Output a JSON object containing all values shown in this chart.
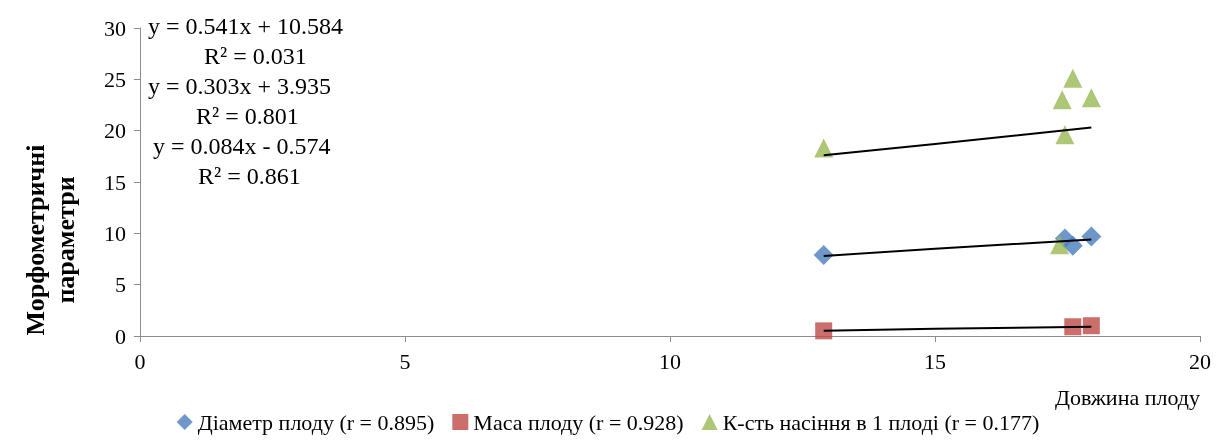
{
  "chart_data": {
    "type": "scatter",
    "xlabel": "Довжина плоду",
    "ylabel": "Морфометричні параметри",
    "annotations": [
      "y = 0.541x + 10.584",
      "R² = 0.031",
      "y = 0.303x + 3.935",
      "R² = 0.801",
      "y = 0.084x - 0.574",
      "R² = 0.861"
    ],
    "x": [
      12.9,
      17.35,
      17.4,
      17.45,
      17.6,
      17.95
    ],
    "series": [
      {
        "name": "Діаметр плоду (r = 0.895)",
        "color": "#4a7ebb",
        "marker": "diamond",
        "values": [
          7.9,
          null,
          null,
          9.5,
          8.8,
          9.7
        ]
      },
      {
        "name": "Маса плоду (r = 0.928)",
        "color": "#be4b48",
        "marker": "square",
        "values": [
          0.5,
          null,
          null,
          null,
          0.9,
          1.0
        ]
      },
      {
        "name": "К-сть насіння в 1 плоді (r = 0.177)",
        "color": "#98b954",
        "marker": "triangle",
        "values": [
          18.3,
          8.9,
          23.0,
          19.6,
          25.1,
          23.2
        ]
      },
      {
        "type": "line",
        "color": "#000000",
        "marker": "none",
        "x": [
          12.9,
          15,
          17.95
        ],
        "values": [
          7.8,
          8.5,
          9.4
        ]
      },
      {
        "type": "line",
        "color": "#000000",
        "marker": "none",
        "x": [
          12.9,
          15,
          17.95
        ],
        "values": [
          0.5,
          0.7,
          0.9
        ]
      },
      {
        "type": "line",
        "color": "#000000",
        "marker": "none",
        "x": [
          12.9,
          15,
          17.95
        ],
        "values": [
          17.6,
          18.7,
          20.3
        ]
      }
    ],
    "xlim": [
      0,
      20
    ],
    "xticks": [
      0,
      5,
      10,
      15,
      20
    ],
    "ylim": [
      0,
      30
    ],
    "yticks": [
      0,
      5,
      10,
      15,
      20,
      25,
      30
    ],
    "grid": false,
    "legend": "bottom"
  }
}
